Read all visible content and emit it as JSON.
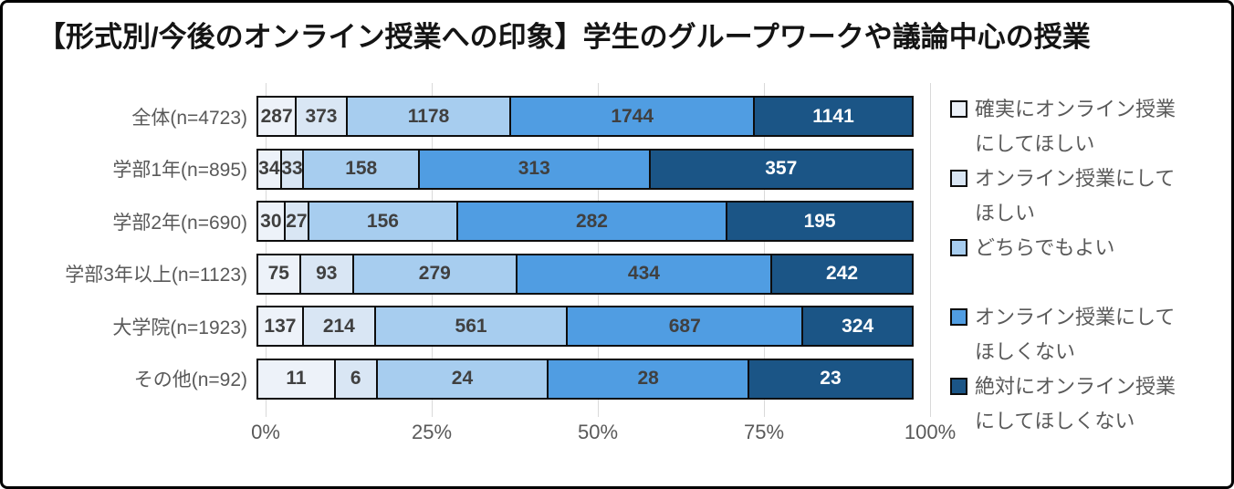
{
  "title": "【形式別/今後のオンライン授業への印象】学生のグループワークや議論中心の授業",
  "colors": {
    "bar_border": "#0d0d0d",
    "gridline": "#d9d9d9",
    "axis_text": "#595959",
    "value_text_dark": "#404040",
    "value_text_light": "#ffffff"
  },
  "chart_data": {
    "type": "bar",
    "orientation": "horizontal",
    "stacked": true,
    "percent_stacked": true,
    "title": "【形式別/今後のオンライン授業への印象】学生のグループワークや議論中心の授業",
    "categories": [
      "全体(n=4723)",
      "学部1年(n=895)",
      "学部2年(n=690)",
      "学部3年以上(n=1123)",
      "大学院(n=1923)",
      "その他(n=92)"
    ],
    "series": [
      {
        "name": "確実にオンライン授業にしてほしい",
        "color": "#edf2f9",
        "text_color": "#404040",
        "values": [
          287,
          34,
          30,
          75,
          137,
          11
        ]
      },
      {
        "name": "オンライン授業にしてほしい",
        "color": "#d9e6f4",
        "text_color": "#404040",
        "values": [
          373,
          33,
          27,
          93,
          214,
          6
        ]
      },
      {
        "name": "どちらでもよい",
        "color": "#a7cdef",
        "text_color": "#404040",
        "values": [
          1178,
          158,
          156,
          279,
          561,
          24
        ]
      },
      {
        "name": "オンライン授業にしてほしくない",
        "color": "#509de2",
        "text_color": "#404040",
        "values": [
          1744,
          313,
          282,
          434,
          687,
          28
        ]
      },
      {
        "name": "絶対にオンライン授業にしてほしくない",
        "color": "#1b5586",
        "text_color": "#ffffff",
        "values": [
          1141,
          357,
          195,
          242,
          324,
          23
        ]
      }
    ],
    "x_ticks": [
      "0%",
      "25%",
      "50%",
      "75%",
      "100%"
    ],
    "xlim": [
      0,
      100
    ],
    "grid": true,
    "legend_position": "right"
  }
}
